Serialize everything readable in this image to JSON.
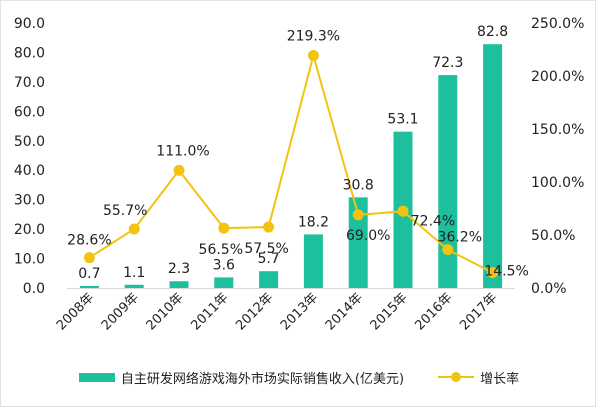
{
  "chart_data": {
    "type": "bar",
    "categories": [
      "2008年",
      "2009年",
      "2010年",
      "2011年",
      "2012年",
      "2013年",
      "2014年",
      "2015年",
      "2016年",
      "2017年"
    ],
    "series": [
      {
        "name": "自主研发网络游戏海外市场实际销售收入(亿美元)",
        "type": "bar",
        "axis": "left",
        "values": [
          0.7,
          1.1,
          2.3,
          3.6,
          5.7,
          18.2,
          30.8,
          53.1,
          72.3,
          82.8
        ],
        "labels": [
          "0.7",
          "1.1",
          "2.3",
          "3.6",
          "5.7",
          "18.2",
          "30.8",
          "53.1",
          "72.3",
          "82.8"
        ]
      },
      {
        "name": "增长率",
        "type": "line",
        "axis": "right",
        "values": [
          28.6,
          55.7,
          111.0,
          56.5,
          57.5,
          219.3,
          69.0,
          72.4,
          36.2,
          14.5
        ],
        "labels": [
          "28.6%",
          "55.7%",
          "111.0%",
          "56.5%",
          "57.5%",
          "219.3%",
          "69.0%",
          "72.4%",
          "36.2%",
          "14.5%"
        ]
      }
    ],
    "y_left": {
      "lim": [
        0,
        90
      ],
      "ticks": [
        "0.0",
        "10.0",
        "20.0",
        "30.0",
        "40.0",
        "50.0",
        "60.0",
        "70.0",
        "80.0",
        "90.0"
      ]
    },
    "y_right": {
      "lim": [
        0,
        250
      ],
      "ticks": [
        "0.0%",
        "50.0%",
        "100.0%",
        "150.0%",
        "200.0%",
        "250.0%"
      ]
    },
    "title": "",
    "xlabel": "",
    "ylabel": "",
    "grid": false,
    "legend": "bottom",
    "colors": {
      "bar": "#1dbf9c",
      "line": "#f2c40f",
      "text": "#222222",
      "axis": "#d9d9d9"
    }
  },
  "legend": {
    "bar_label": "自主研发网络游戏海外市场实际销售收入(亿美元)",
    "line_label": "增长率"
  }
}
